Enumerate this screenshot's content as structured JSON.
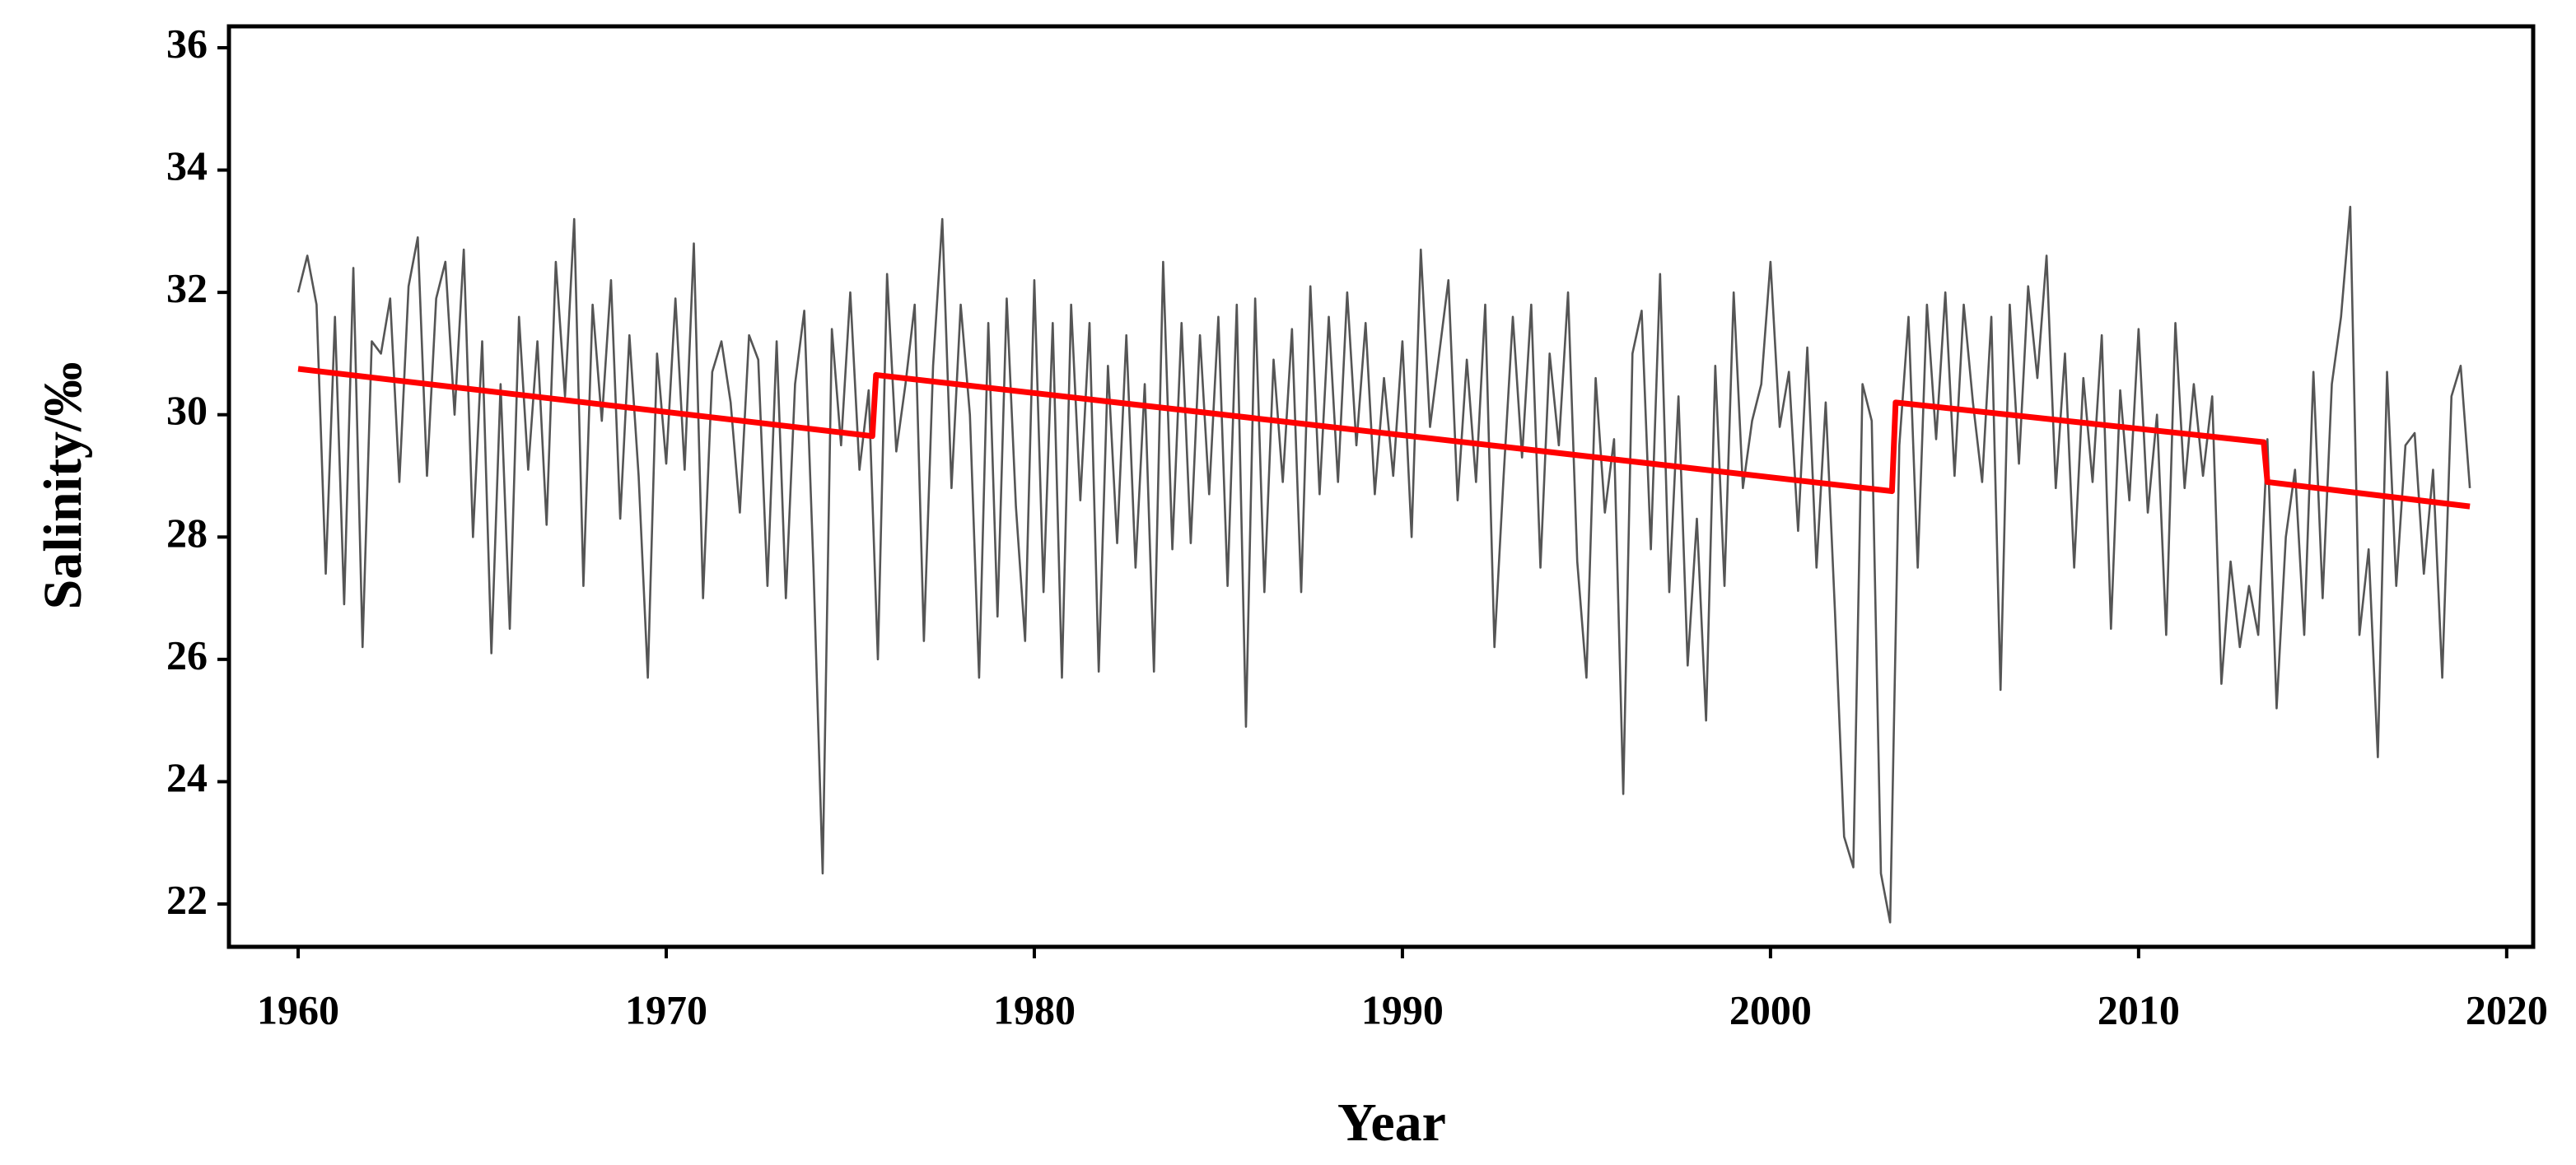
{
  "chart_data": {
    "type": "line",
    "xlabel": "Year",
    "ylabel": "Salinity/‰",
    "xlim": [
      1958.12,
      2020.72
    ],
    "xticks": [
      1960,
      1970,
      1980,
      1990,
      2000,
      2010,
      2020
    ],
    "ylim": [
      21.3,
      36.35
    ],
    "yticks": [
      22,
      24,
      26,
      28,
      30,
      32,
      34,
      36
    ],
    "series": [
      {
        "color": "#555555",
        "x": [
          1960,
          1960.25,
          1960.5,
          1960.75,
          1961,
          1961.25,
          1961.5,
          1961.75,
          1962,
          1962.25,
          1962.5,
          1962.75,
          1963,
          1963.25,
          1963.5,
          1963.75,
          1964,
          1964.25,
          1964.5,
          1964.75,
          1965,
          1965.25,
          1965.5,
          1965.75,
          1966,
          1966.25,
          1966.5,
          1966.75,
          1967,
          1967.25,
          1967.5,
          1967.75,
          1968,
          1968.25,
          1968.5,
          1968.75,
          1969,
          1969.25,
          1969.5,
          1969.75,
          1970,
          1970.25,
          1970.5,
          1970.75,
          1971,
          1971.25,
          1971.5,
          1971.75,
          1972,
          1972.25,
          1972.5,
          1972.75,
          1973,
          1973.25,
          1973.5,
          1973.75,
          1974,
          1974.25,
          1974.5,
          1974.75,
          1975,
          1975.25,
          1975.5,
          1975.75,
          1976,
          1976.25,
          1976.5,
          1976.75,
          1977,
          1977.25,
          1977.5,
          1977.75,
          1978,
          1978.25,
          1978.5,
          1978.75,
          1979,
          1979.25,
          1979.5,
          1979.75,
          1980,
          1980.25,
          1980.5,
          1980.75,
          1981,
          1981.25,
          1981.5,
          1981.75,
          1982,
          1982.25,
          1982.5,
          1982.75,
          1983,
          1983.25,
          1983.5,
          1983.75,
          1984,
          1984.25,
          1984.5,
          1984.75,
          1985,
          1985.25,
          1985.5,
          1985.75,
          1986,
          1986.25,
          1986.5,
          1986.75,
          1987,
          1987.25,
          1987.5,
          1987.75,
          1988,
          1988.25,
          1988.5,
          1988.75,
          1989,
          1989.25,
          1989.5,
          1989.75,
          1990,
          1990.25,
          1990.5,
          1990.75,
          1991,
          1991.25,
          1991.5,
          1991.75,
          1992,
          1992.25,
          1992.5,
          1992.75,
          1993,
          1993.25,
          1993.5,
          1993.75,
          1994,
          1994.25,
          1994.5,
          1994.75,
          1995,
          1995.25,
          1995.5,
          1995.75,
          1996,
          1996.25,
          1996.5,
          1996.75,
          1997,
          1997.25,
          1997.5,
          1997.75,
          1998,
          1998.25,
          1998.5,
          1998.75,
          1999,
          1999.25,
          1999.5,
          1999.75,
          2000,
          2000.25,
          2000.5,
          2000.75,
          2001,
          2001.25,
          2001.5,
          2001.75,
          2002,
          2002.25,
          2002.5,
          2002.75,
          2003,
          2003.25,
          2003.5,
          2003.75,
          2004,
          2004.25,
          2004.5,
          2004.75,
          2005,
          2005.25,
          2005.5,
          2005.75,
          2006,
          2006.25,
          2006.5,
          2006.75,
          2007,
          2007.25,
          2007.5,
          2007.75,
          2008,
          2008.25,
          2008.5,
          2008.75,
          2009,
          2009.25,
          2009.5,
          2009.75,
          2010,
          2010.25,
          2010.5,
          2010.75,
          2011,
          2011.25,
          2011.5,
          2011.75,
          2012,
          2012.25,
          2012.5,
          2012.75,
          2013,
          2013.25,
          2013.5,
          2013.75,
          2014,
          2014.25,
          2014.5,
          2014.75,
          2015,
          2015.25,
          2015.5,
          2015.75,
          2016,
          2016.25,
          2016.5,
          2016.75,
          2017,
          2017.25,
          2017.5,
          2017.75,
          2018,
          2018.25,
          2018.5,
          2018.75,
          2019
        ],
        "values": [
          32.0,
          32.6,
          31.8,
          27.4,
          31.6,
          26.9,
          32.4,
          26.2,
          31.2,
          31.0,
          31.9,
          28.9,
          32.1,
          32.9,
          29.0,
          31.9,
          32.5,
          30.0,
          32.7,
          28.0,
          31.2,
          26.1,
          30.5,
          26.5,
          31.6,
          29.1,
          31.2,
          28.2,
          32.5,
          30.3,
          33.2,
          27.2,
          31.8,
          29.9,
          32.2,
          28.3,
          31.3,
          29.0,
          25.7,
          31.0,
          29.2,
          31.9,
          29.1,
          32.8,
          27.0,
          30.7,
          31.2,
          30.2,
          28.4,
          31.3,
          30.9,
          27.2,
          31.2,
          27.0,
          30.5,
          31.7,
          27.5,
          22.5,
          31.4,
          29.5,
          32.0,
          29.1,
          30.4,
          26.0,
          32.3,
          29.4,
          30.5,
          31.8,
          26.3,
          30.8,
          33.2,
          28.8,
          31.8,
          30.0,
          25.7,
          31.5,
          26.7,
          31.9,
          28.5,
          26.3,
          32.2,
          27.1,
          31.5,
          25.7,
          31.8,
          28.6,
          31.5,
          25.8,
          30.8,
          27.9,
          31.3,
          27.5,
          30.5,
          25.8,
          32.5,
          27.8,
          31.5,
          27.9,
          31.3,
          28.7,
          31.6,
          27.2,
          31.8,
          24.9,
          31.9,
          27.1,
          30.9,
          28.9,
          31.4,
          27.1,
          32.1,
          28.7,
          31.6,
          28.9,
          32.0,
          29.5,
          31.5,
          28.7,
          30.6,
          29.0,
          31.2,
          28.0,
          32.7,
          29.8,
          31.0,
          32.2,
          28.6,
          30.9,
          28.9,
          31.8,
          26.2,
          29.0,
          31.6,
          29.3,
          31.8,
          27.5,
          31.0,
          29.5,
          32.0,
          27.6,
          25.7,
          30.6,
          28.4,
          29.6,
          23.8,
          31.0,
          31.7,
          27.8,
          32.3,
          27.1,
          30.3,
          25.9,
          28.3,
          25.0,
          30.8,
          27.2,
          32.0,
          28.8,
          29.9,
          30.5,
          32.5,
          29.8,
          30.7,
          28.1,
          31.1,
          27.5,
          30.2,
          26.8,
          23.1,
          22.6,
          30.5,
          29.9,
          22.5,
          21.7,
          29.5,
          31.6,
          27.5,
          31.8,
          29.6,
          32.0,
          29.0,
          31.8,
          30.2,
          28.9,
          31.6,
          25.5,
          31.8,
          29.2,
          32.1,
          30.6,
          32.6,
          28.8,
          31.0,
          27.5,
          30.6,
          28.9,
          31.3,
          26.5,
          30.4,
          28.6,
          31.4,
          28.4,
          30.0,
          26.4,
          31.5,
          28.8,
          30.5,
          29.0,
          30.3,
          25.6,
          27.6,
          26.2,
          27.2,
          26.4,
          29.6,
          25.2,
          28.0,
          29.1,
          26.4,
          30.7,
          27.0,
          30.5,
          31.6,
          33.4,
          26.4,
          27.8,
          24.4,
          30.7,
          27.2,
          29.5,
          29.7,
          27.4,
          29.1,
          25.7,
          30.3,
          30.8,
          28.8
        ]
      },
      {
        "color": "#ff0000",
        "x": [
          1960,
          1975.6,
          1975.7,
          2003.3,
          2003.4,
          2013.4,
          2013.5,
          2019
        ],
        "values": [
          30.75,
          29.65,
          30.65,
          28.75,
          30.2,
          29.55,
          28.9,
          28.5
        ]
      }
    ]
  }
}
